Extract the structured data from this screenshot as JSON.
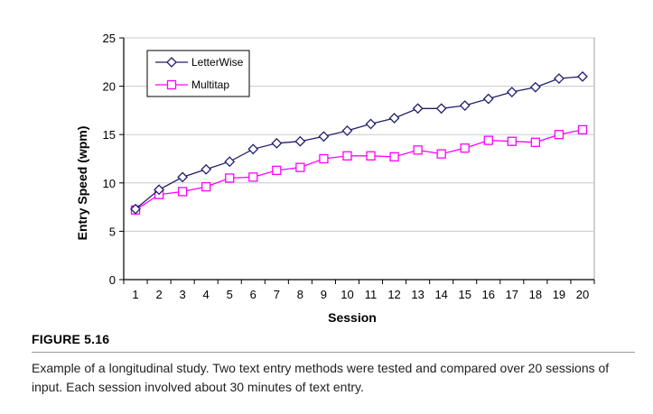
{
  "figure": {
    "label": "FIGURE 5.16",
    "caption": "Example of a longitudinal study. Two text entry methods were tested and compared over 20 sessions of input. Each session involved about 30 minutes of text entry."
  },
  "chart_data": {
    "type": "line",
    "xlabel": "Session",
    "ylabel": "Entry Speed (wpm)",
    "x": [
      1,
      2,
      3,
      4,
      5,
      6,
      7,
      8,
      9,
      10,
      11,
      12,
      13,
      14,
      15,
      16,
      17,
      18,
      19,
      20
    ],
    "ylim": [
      0,
      25
    ],
    "yticks": [
      0,
      5,
      10,
      15,
      20,
      25
    ],
    "grid": "horizontal",
    "legend_position": "top-left",
    "series": [
      {
        "name": "LetterWise",
        "color": "#1f1f6e",
        "marker": "diamond",
        "values": [
          7.3,
          9.3,
          10.6,
          11.4,
          12.2,
          13.5,
          14.1,
          14.3,
          14.8,
          15.4,
          16.1,
          16.7,
          17.7,
          17.7,
          18.0,
          18.7,
          19.4,
          19.9,
          20.8,
          21.0
        ]
      },
      {
        "name": "Multitap",
        "color": "#ff00ff",
        "marker": "square",
        "values": [
          7.2,
          8.8,
          9.1,
          9.6,
          10.5,
          10.6,
          11.3,
          11.6,
          12.5,
          12.8,
          12.8,
          12.7,
          13.4,
          13.0,
          13.6,
          14.4,
          14.3,
          14.2,
          15.0,
          15.5
        ]
      }
    ]
  }
}
